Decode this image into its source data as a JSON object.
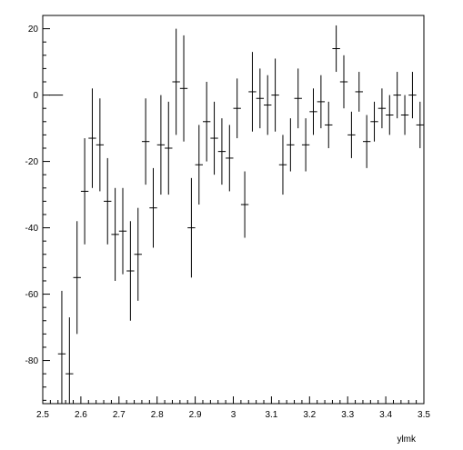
{
  "chart_data": {
    "type": "scatter",
    "title": "",
    "xlabel": "ylmk",
    "ylabel": "",
    "xlim": [
      2.5,
      3.5
    ],
    "ylim": [
      -93,
      24
    ],
    "grid": false,
    "legend": "none",
    "x_ticks": [
      {
        "value": 2.5,
        "label": "2.5"
      },
      {
        "value": 2.6,
        "label": "2.6"
      },
      {
        "value": 2.7,
        "label": "2.7"
      },
      {
        "value": 2.8,
        "label": "2.8"
      },
      {
        "value": 2.9,
        "label": "2.9"
      },
      {
        "value": 3.0,
        "label": "3"
      },
      {
        "value": 3.1,
        "label": "3.1"
      },
      {
        "value": 3.2,
        "label": "3.2"
      },
      {
        "value": 3.3,
        "label": "3.3"
      },
      {
        "value": 3.4,
        "label": "3.4"
      },
      {
        "value": 3.5,
        "label": "3.5"
      }
    ],
    "y_ticks": [
      {
        "value": 20,
        "label": "20"
      },
      {
        "value": 0,
        "label": "0"
      },
      {
        "value": -20,
        "label": "-20"
      },
      {
        "value": -40,
        "label": "-40"
      },
      {
        "value": -60,
        "label": "-60"
      },
      {
        "value": -80,
        "label": "-80"
      }
    ],
    "bin_half_width": 0.01,
    "points": [
      {
        "x": 2.535,
        "y": 0,
        "err": 0
      },
      {
        "x": 2.55,
        "y": -78,
        "err": 19
      },
      {
        "x": 2.57,
        "y": -84,
        "err": 17
      },
      {
        "x": 2.59,
        "y": -55,
        "err": 17
      },
      {
        "x": 2.61,
        "y": -29,
        "err": 16
      },
      {
        "x": 2.63,
        "y": -13,
        "err": 15
      },
      {
        "x": 2.65,
        "y": -15,
        "err": 14
      },
      {
        "x": 2.67,
        "y": -32,
        "err": 13
      },
      {
        "x": 2.69,
        "y": -42,
        "err": 14
      },
      {
        "x": 2.71,
        "y": -41,
        "err": 13
      },
      {
        "x": 2.73,
        "y": -53,
        "err": 15
      },
      {
        "x": 2.75,
        "y": -48,
        "err": 14
      },
      {
        "x": 2.77,
        "y": -14,
        "err": 13
      },
      {
        "x": 2.79,
        "y": -34,
        "err": 12
      },
      {
        "x": 2.81,
        "y": -15,
        "err": 15
      },
      {
        "x": 2.83,
        "y": -16,
        "err": 14
      },
      {
        "x": 2.85,
        "y": 4,
        "err": 16
      },
      {
        "x": 2.87,
        "y": 2,
        "err": 16
      },
      {
        "x": 2.89,
        "y": -40,
        "err": 15
      },
      {
        "x": 2.91,
        "y": -21,
        "err": 12
      },
      {
        "x": 2.93,
        "y": -8,
        "err": 12
      },
      {
        "x": 2.95,
        "y": -13,
        "err": 11
      },
      {
        "x": 2.97,
        "y": -17,
        "err": 10
      },
      {
        "x": 2.99,
        "y": -19,
        "err": 10
      },
      {
        "x": 3.01,
        "y": -4,
        "err": 9
      },
      {
        "x": 3.03,
        "y": -33,
        "err": 10
      },
      {
        "x": 3.05,
        "y": 1,
        "err": 12
      },
      {
        "x": 3.07,
        "y": -1,
        "err": 9
      },
      {
        "x": 3.09,
        "y": -3,
        "err": 9
      },
      {
        "x": 3.11,
        "y": 0,
        "err": 11
      },
      {
        "x": 3.13,
        "y": -21,
        "err": 9
      },
      {
        "x": 3.15,
        "y": -15,
        "err": 8
      },
      {
        "x": 3.17,
        "y": -1,
        "err": 9
      },
      {
        "x": 3.19,
        "y": -15,
        "err": 8
      },
      {
        "x": 3.21,
        "y": -5,
        "err": 7
      },
      {
        "x": 3.23,
        "y": -2,
        "err": 8
      },
      {
        "x": 3.25,
        "y": -9,
        "err": 7
      },
      {
        "x": 3.27,
        "y": 14,
        "err": 7
      },
      {
        "x": 3.29,
        "y": 4,
        "err": 8
      },
      {
        "x": 3.31,
        "y": -12,
        "err": 7
      },
      {
        "x": 3.33,
        "y": 1,
        "err": 6
      },
      {
        "x": 3.35,
        "y": -14,
        "err": 8
      },
      {
        "x": 3.37,
        "y": -8,
        "err": 6
      },
      {
        "x": 3.39,
        "y": -4,
        "err": 6
      },
      {
        "x": 3.41,
        "y": -6,
        "err": 6
      },
      {
        "x": 3.43,
        "y": 0,
        "err": 7
      },
      {
        "x": 3.45,
        "y": -6,
        "err": 6
      },
      {
        "x": 3.47,
        "y": 0,
        "err": 7
      },
      {
        "x": 3.49,
        "y": -9,
        "err": 7
      }
    ]
  }
}
